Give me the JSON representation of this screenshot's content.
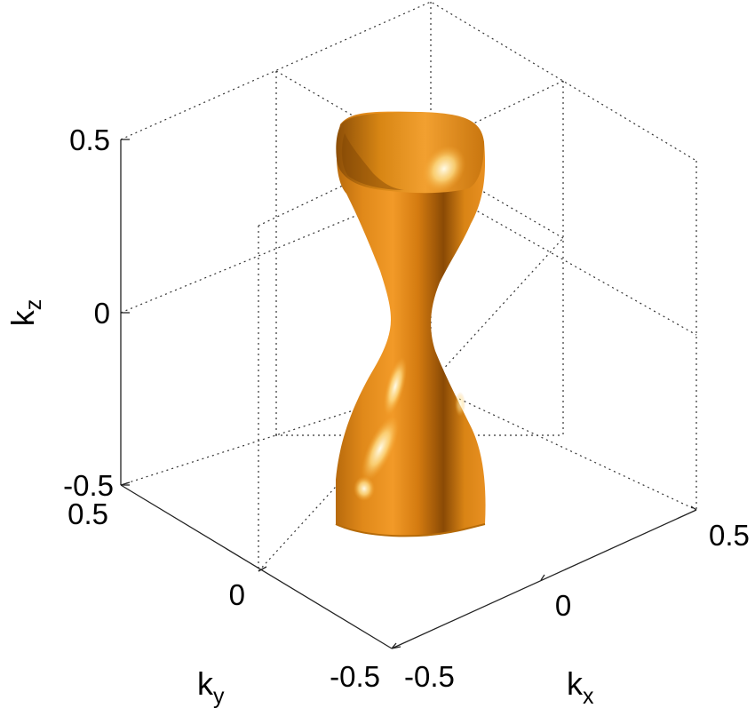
{
  "chart_data": {
    "type": "surface3d",
    "xlabel": "k",
    "xlabel_sub": "x",
    "ylabel": "k",
    "ylabel_sub": "y",
    "zlabel": "k",
    "zlabel_sub": "z",
    "xlim": [
      -0.5,
      0.5
    ],
    "ylim": [
      -0.5,
      0.5
    ],
    "zlim": [
      -0.5,
      0.5
    ],
    "x_ticks": [
      "-0.5",
      "0",
      "0.5"
    ],
    "y_ticks": [
      "-0.5",
      "0",
      "0.5"
    ],
    "z_ticks": [
      "-0.5",
      "0",
      "0.5"
    ],
    "grid": true,
    "surface_color": "#E0860F",
    "surface_profile": {
      "z": [
        -0.5,
        -0.45,
        -0.4,
        -0.35,
        -0.3,
        -0.25,
        -0.2,
        -0.15,
        -0.1,
        -0.05,
        0.0,
        0.05,
        0.1,
        0.15,
        0.2,
        0.25,
        0.3,
        0.35,
        0.4,
        0.45,
        0.5
      ],
      "half_width": [
        0.16,
        0.16,
        0.155,
        0.145,
        0.13,
        0.11,
        0.085,
        0.06,
        0.04,
        0.028,
        0.03,
        0.045,
        0.065,
        0.09,
        0.115,
        0.135,
        0.15,
        0.158,
        0.162,
        0.165,
        0.165
      ]
    }
  }
}
